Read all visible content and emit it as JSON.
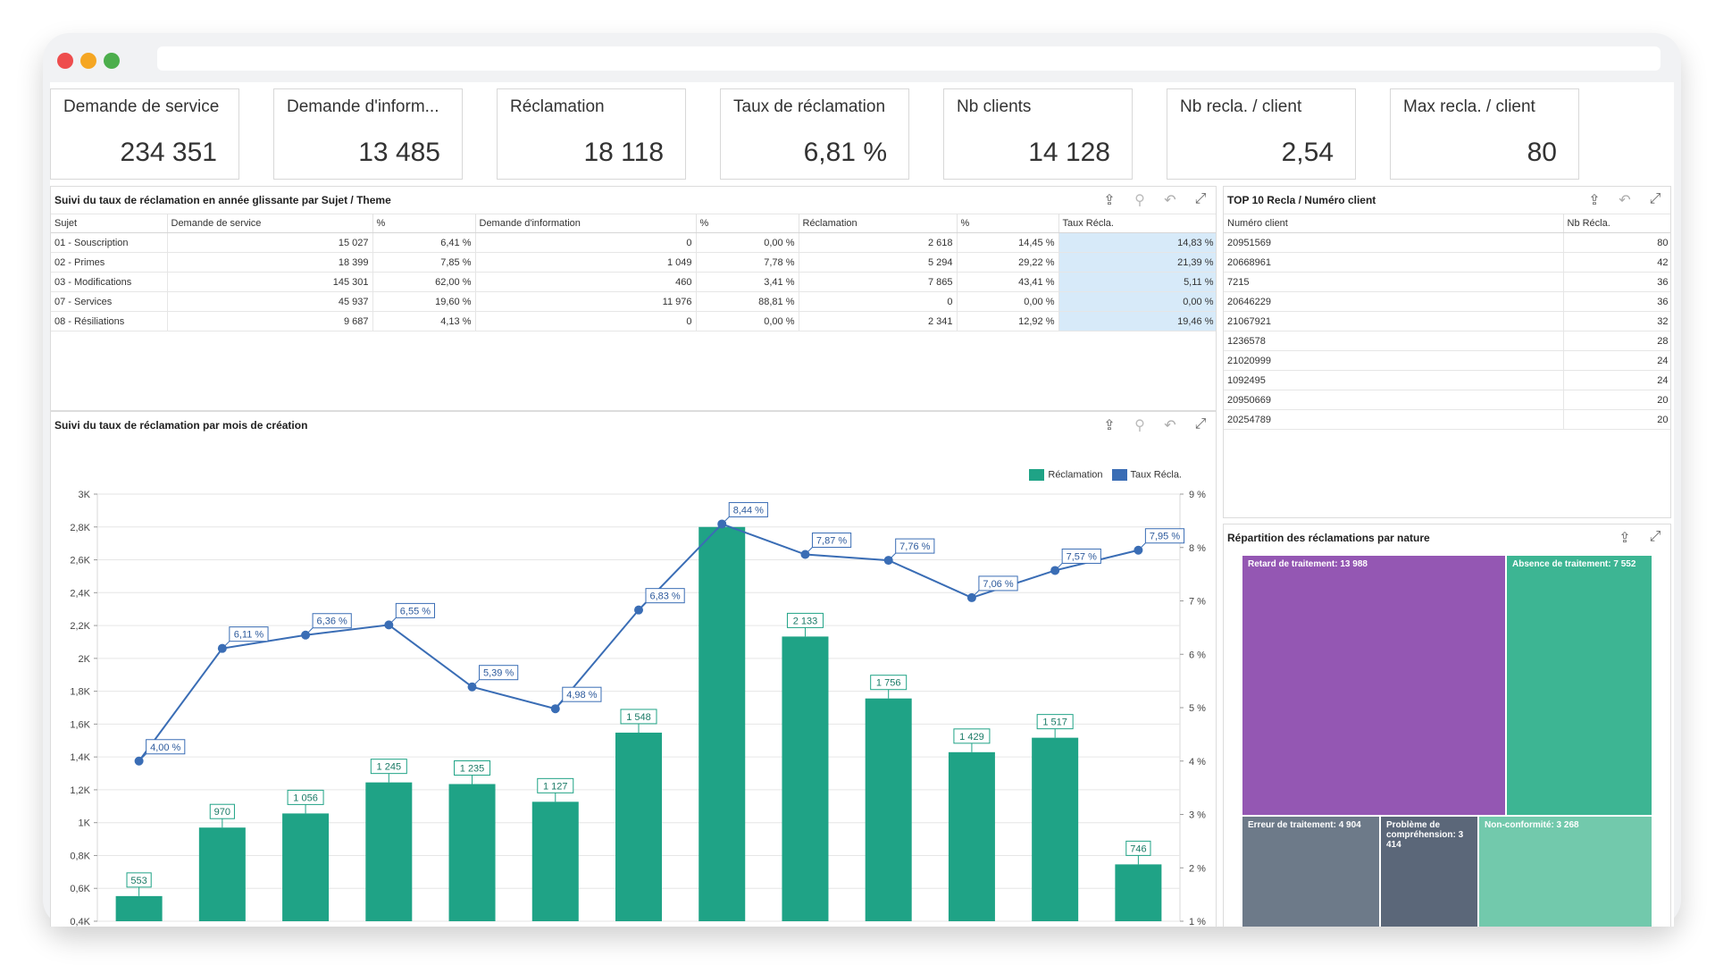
{
  "kpis": [
    {
      "label": "Demande de service",
      "value": "234 351"
    },
    {
      "label": "Demande  d'inform...",
      "value": "13 485"
    },
    {
      "label": "Réclamation",
      "value": "18 118"
    },
    {
      "label": "Taux de réclamation",
      "value": "6,81 %"
    },
    {
      "label": "Nb clients",
      "value": "14 128"
    },
    {
      "label": "Nb recla. / client",
      "value": "2,54"
    },
    {
      "label": "Max recla. / client",
      "value": "80"
    }
  ],
  "subject_table": {
    "title": "Suivi du taux de réclamation en année glissante par Sujet / Theme",
    "columns": [
      "Sujet",
      "Demande de service",
      "%",
      "Demande d'information",
      "%",
      "Réclamation",
      "%",
      "Taux Récla."
    ],
    "rows": [
      [
        "01 - Souscription",
        "15 027",
        "6,41 %",
        "0",
        "0,00 %",
        "2 618",
        "14,45 %",
        "14,83 %"
      ],
      [
        "02 - Primes",
        "18 399",
        "7,85 %",
        "1 049",
        "7,78 %",
        "5 294",
        "29,22 %",
        "21,39 %"
      ],
      [
        "03 - Modifications",
        "145 301",
        "62,00 %",
        "460",
        "3,41 %",
        "7 865",
        "43,41 %",
        "5,11 %"
      ],
      [
        "07 - Services",
        "45 937",
        "19,60 %",
        "11 976",
        "88,81 %",
        "0",
        "0,00 %",
        "0,00 %"
      ],
      [
        "08 - Résiliations",
        "9 687",
        "4,13 %",
        "0",
        "0,00 %",
        "2 341",
        "12,92 %",
        "19,46 %"
      ]
    ]
  },
  "top10": {
    "title": "TOP 10 Recla / Numéro client",
    "columns": [
      "Numéro client",
      "Nb Récla."
    ],
    "rows": [
      [
        "20951569",
        "80"
      ],
      [
        "20668961",
        "42"
      ],
      [
        "7215",
        "36"
      ],
      [
        "20646229",
        "36"
      ],
      [
        "21067921",
        "32"
      ],
      [
        "1236578",
        "28"
      ],
      [
        "21020999",
        "24"
      ],
      [
        "1092495",
        "24"
      ],
      [
        "20950669",
        "20"
      ],
      [
        "20254789",
        "20"
      ]
    ]
  },
  "monthly_chart_title": "Suivi du taux de réclamation par mois de création",
  "chart_data": {
    "type": "bar",
    "series": [
      {
        "name": "Réclamation",
        "color": "#1fa386",
        "values": [
          553,
          970,
          1056,
          1245,
          1235,
          1127,
          1548,
          2800,
          2133,
          1756,
          1429,
          1517,
          746
        ],
        "labels": [
          "553",
          "970",
          "1 056",
          "1 245",
          "1 235",
          "1 127",
          "1 548",
          "",
          "2 133",
          "1 756",
          "1 429",
          "1 517",
          "746"
        ]
      },
      {
        "name": "Taux Récla.",
        "color": "#3a6db5",
        "values": [
          4.0,
          6.11,
          6.36,
          6.55,
          5.39,
          4.98,
          6.83,
          8.44,
          7.87,
          7.76,
          7.06,
          7.57,
          7.95
        ],
        "labels": [
          "4,00 %",
          "6,11 %",
          "6,36 %",
          "6,55 %",
          "5,39 %",
          "4,98 %",
          "6,83 %",
          "8,44 %",
          "7,87 %",
          "7,76 %",
          "7,06 %",
          "7,57 %",
          "7,95 %"
        ]
      }
    ],
    "y_ticks": [
      "0,4K",
      "0,6K",
      "0,8K",
      "1K",
      "1,2K",
      "1,4K",
      "1,6K",
      "1,8K",
      "2K",
      "2,2K",
      "2,4K",
      "2,6K",
      "2,8K",
      "3K"
    ],
    "y_tick_values": [
      400,
      600,
      800,
      1000,
      1200,
      1400,
      1600,
      1800,
      2000,
      2200,
      2400,
      2600,
      2800,
      3000
    ],
    "y2_ticks": [
      "1 %",
      "2 %",
      "3 %",
      "4 %",
      "5 %",
      "6 %",
      "7 %",
      "8 %",
      "9 %"
    ],
    "y2_tick_values": [
      1,
      2,
      3,
      4,
      5,
      6,
      7,
      8,
      9
    ],
    "ylim": [
      400,
      3000
    ],
    "y2lim": [
      1,
      9
    ],
    "grid": true,
    "legend": "top-right"
  },
  "treemap": {
    "title": "Répartition des réclamations par nature",
    "cells": [
      {
        "label": "Retard de traitement: 13 988",
        "color": "#9457b3"
      },
      {
        "label": "Absence de traitement: 7 552",
        "color": "#3db593"
      },
      {
        "label": "Erreur de traitement: 4 904",
        "color": "#6d7a89"
      },
      {
        "label": "Problème de compréhension: 3 414",
        "color": "#5b6779"
      },
      {
        "label": "Non-conformité: 3 268",
        "color": "#72c9ac"
      }
    ]
  },
  "colors": {
    "highlight": "#d7eaf9",
    "bar": "#1fa386",
    "line": "#3a6db5"
  }
}
